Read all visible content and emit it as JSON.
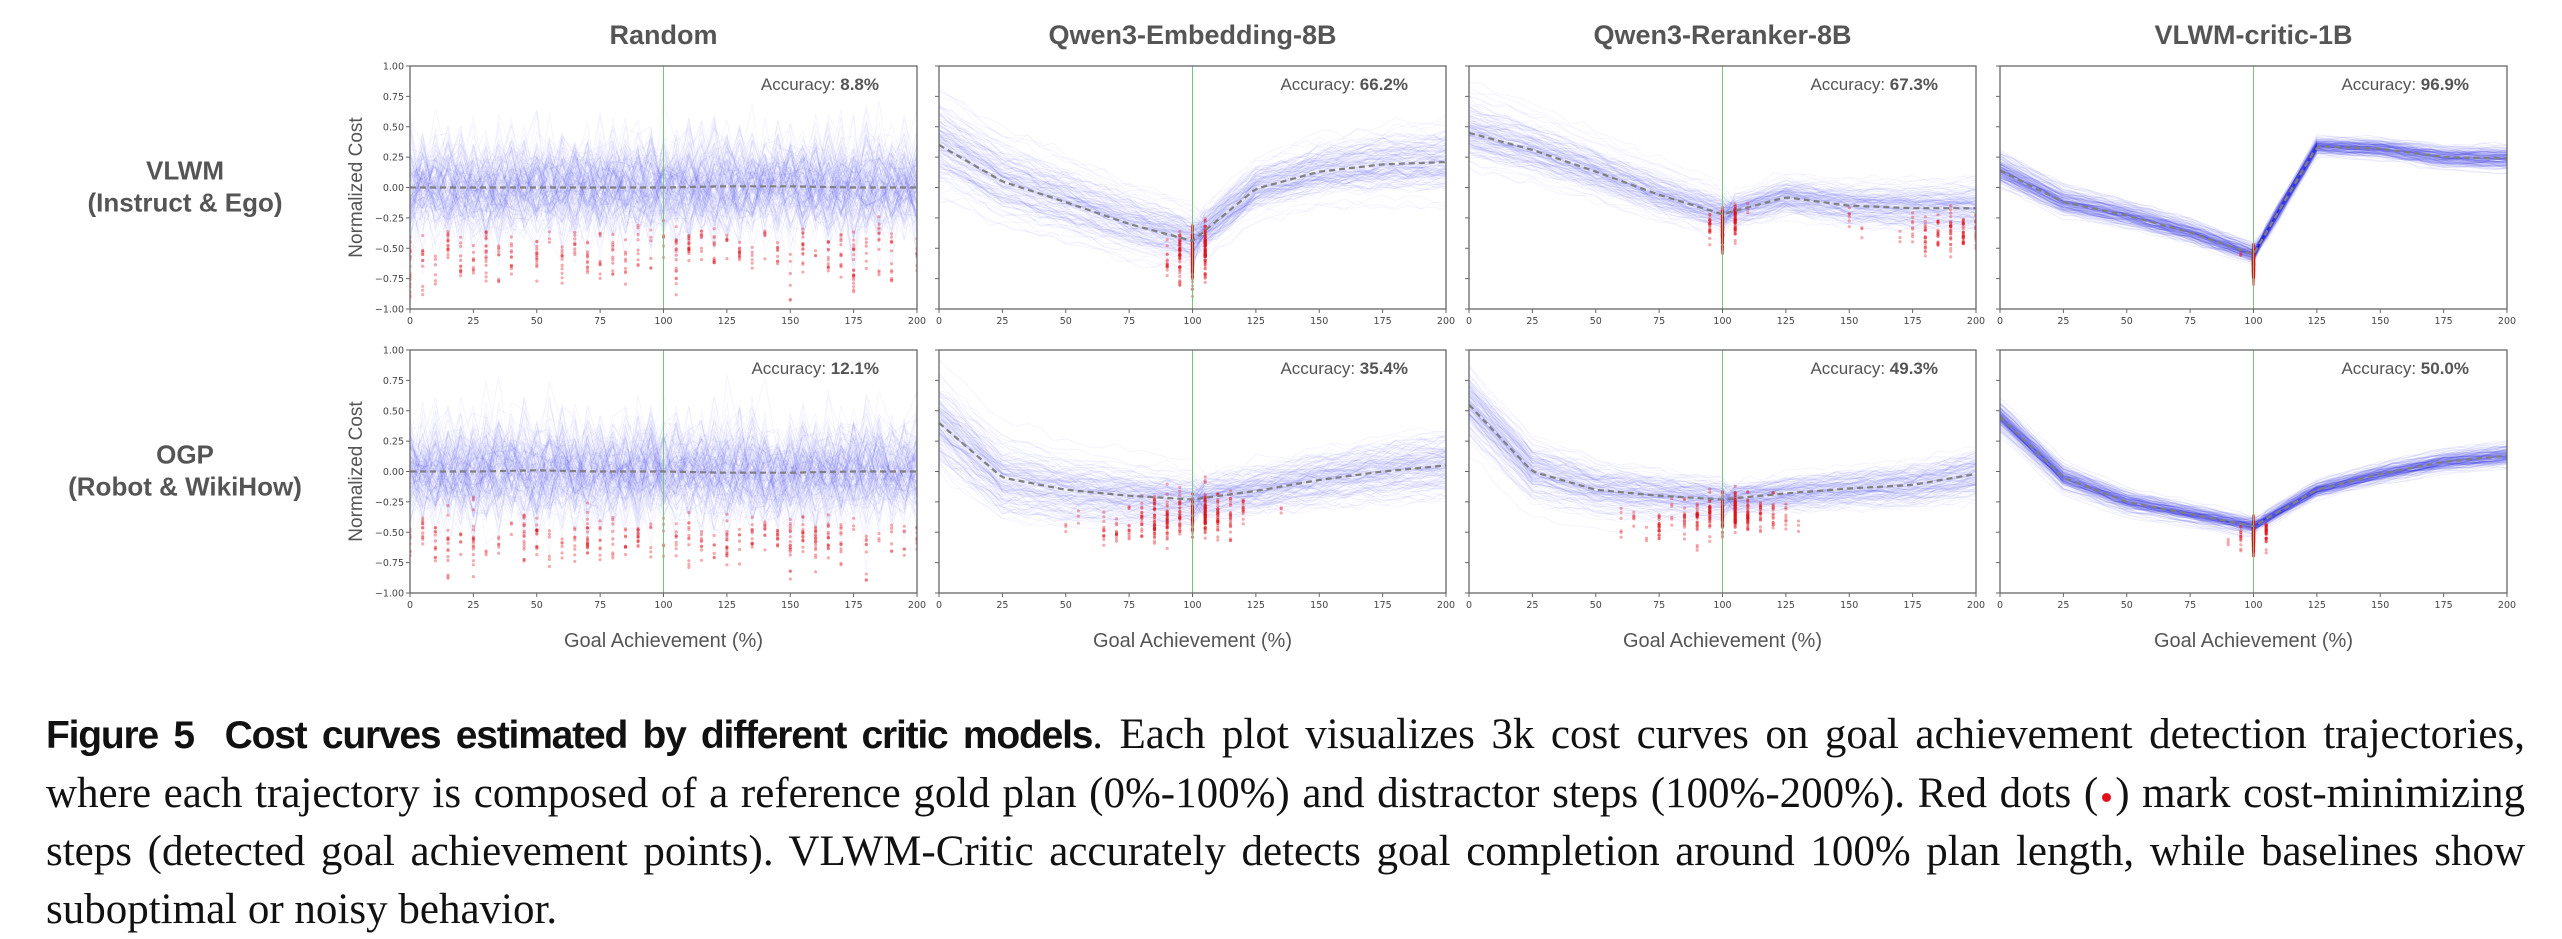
{
  "chart_data": {
    "type": "line",
    "xlabel": "Goal Achievement (%)",
    "ylabel": "Normalized Cost",
    "xlim": [
      0,
      200
    ],
    "ylim": [
      -1.0,
      1.0
    ],
    "xticks": [
      "0",
      "25",
      "50",
      "75",
      "100",
      "125",
      "150",
      "175",
      "200"
    ],
    "yticks": [
      "1.00",
      "0.75",
      "0.50",
      "0.25",
      "0.00",
      "−0.25",
      "−0.50",
      "−0.75",
      "−1.00"
    ],
    "grid": false,
    "reference_line_x": 100,
    "accuracy_label": "Accuracy:",
    "columns": [
      "Random",
      "Qwen3-Embedding-8B",
      "Qwen3-Reranker-8B",
      "VLWM-critic-1B"
    ],
    "rows": [
      {
        "label_line1": "VLWM",
        "label_line2": "(Instruct & Ego)"
      },
      {
        "label_line1": "OGP",
        "label_line2": "(Robot & WikiHow)"
      }
    ],
    "colors": {
      "curves": "#2020e8",
      "detected_points": "#e0101a",
      "mean_line": "#808080",
      "reference_line": "#7cc47c"
    },
    "mean_x": [
      0,
      25,
      50,
      75,
      100,
      125,
      150,
      175,
      200
    ],
    "panels": [
      {
        "row": 0,
        "column": 0,
        "accuracy": "8.8%",
        "mean_y": [
          0.0,
          0.0,
          0.0,
          0.0,
          0.0,
          0.01,
          0.01,
          0.0,
          0.0
        ]
      },
      {
        "row": 0,
        "column": 1,
        "accuracy": "66.2%",
        "mean_y": [
          0.35,
          0.05,
          -0.12,
          -0.3,
          -0.44,
          -0.01,
          0.13,
          0.19,
          0.21
        ]
      },
      {
        "row": 0,
        "column": 2,
        "accuracy": "67.3%",
        "mean_y": [
          0.45,
          0.31,
          0.13,
          -0.06,
          -0.22,
          -0.08,
          -0.15,
          -0.17,
          -0.17
        ]
      },
      {
        "row": 0,
        "column": 3,
        "accuracy": "96.9%",
        "mean_y": [
          0.14,
          -0.12,
          -0.23,
          -0.37,
          -0.55,
          0.34,
          0.32,
          0.25,
          0.24
        ]
      },
      {
        "row": 1,
        "column": 0,
        "accuracy": "12.1%",
        "mean_y": [
          0.0,
          0.0,
          0.01,
          0.0,
          0.0,
          -0.01,
          -0.01,
          0.0,
          0.0
        ]
      },
      {
        "row": 1,
        "column": 1,
        "accuracy": "35.4%",
        "mean_y": [
          0.4,
          -0.05,
          -0.15,
          -0.2,
          -0.23,
          -0.16,
          -0.07,
          0.0,
          0.05
        ]
      },
      {
        "row": 1,
        "column": 2,
        "accuracy": "49.3%",
        "mean_y": [
          0.55,
          0.0,
          -0.15,
          -0.2,
          -0.23,
          -0.18,
          -0.14,
          -0.11,
          -0.02
        ]
      },
      {
        "row": 1,
        "column": 3,
        "accuracy": "50.0%",
        "mean_y": [
          0.45,
          -0.05,
          -0.25,
          -0.35,
          -0.45,
          -0.15,
          -0.02,
          0.08,
          0.13
        ]
      }
    ]
  },
  "caption": {
    "figure_label": "Figure 5",
    "title": "Cost curves estimated by different critic models",
    "text_before_dot": ". Each plot visualizes 3k cost curves on goal achievement detection trajectories, where each trajectory is composed of a reference gold plan (0%-100%) and distractor steps (100%-200%). Red dots (",
    "text_after_dot": ") mark cost-minimizing steps (detected goal achievement points). VLWM-Critic accurately detects goal completion around 100% plan length, while baselines show suboptimal or noisy behavior."
  }
}
